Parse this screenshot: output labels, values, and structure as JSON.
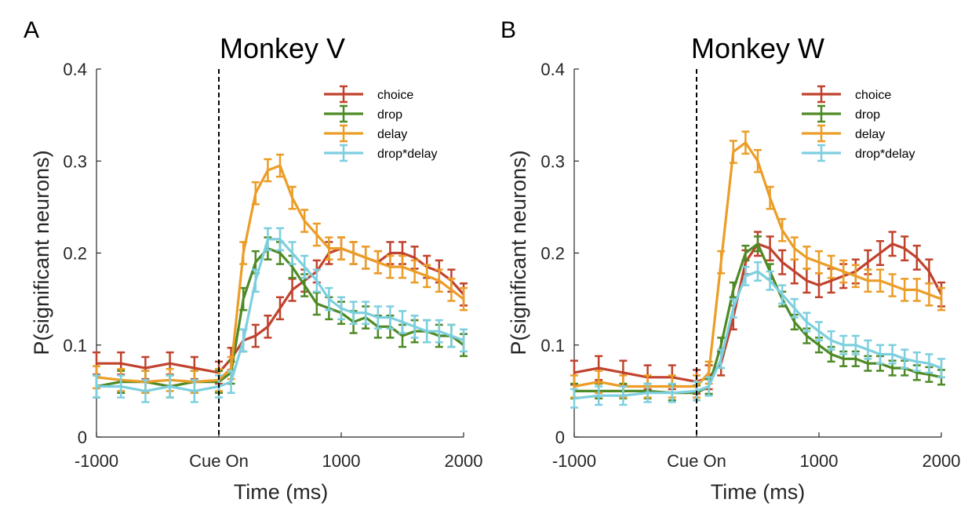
{
  "colors": {
    "choice": "#c0422d",
    "drop": "#4e8a25",
    "delay": "#eb9d27",
    "drop*delay": "#7dcfdf"
  },
  "chart_data": [
    {
      "type": "line",
      "panel_label": "A",
      "title": "Monkey V",
      "xlabel": "Time (ms)",
      "ylabel": "P(significant neurons)",
      "xlim": [
        -1000,
        2000
      ],
      "ylim": [
        0,
        0.4
      ],
      "xticks": [
        -1000,
        0,
        1000,
        2000
      ],
      "xtick_labels": [
        "-1000",
        "Cue On",
        "1000",
        "2000"
      ],
      "yticks": [
        0,
        0.1,
        0.2,
        0.3,
        0.4
      ],
      "ytick_labels": [
        "0",
        "0.1",
        "0.2",
        "0.3",
        "0.4"
      ],
      "cue_line_x": 0,
      "legend_position": "top-right",
      "series": [
        {
          "name": "choice",
          "x": [
            -1000,
            -800,
            -600,
            -400,
            -200,
            0,
            100,
            200,
            300,
            400,
            500,
            600,
            700,
            800,
            900,
            1000,
            1100,
            1200,
            1300,
            1400,
            1500,
            1600,
            1700,
            1800,
            1900,
            2000
          ],
          "y": [
            0.08,
            0.08,
            0.075,
            0.08,
            0.075,
            0.07,
            0.085,
            0.105,
            0.11,
            0.12,
            0.14,
            0.16,
            0.17,
            0.18,
            0.2,
            0.205,
            0.2,
            0.195,
            0.19,
            0.2,
            0.2,
            0.195,
            0.185,
            0.18,
            0.17,
            0.155
          ],
          "err": 0.012
        },
        {
          "name": "drop",
          "x": [
            -1000,
            -800,
            -600,
            -400,
            -200,
            0,
            100,
            200,
            300,
            400,
            500,
            600,
            700,
            800,
            900,
            1000,
            1100,
            1200,
            1300,
            1400,
            1500,
            1600,
            1700,
            1800,
            1900,
            2000
          ],
          "y": [
            0.055,
            0.06,
            0.06,
            0.055,
            0.06,
            0.06,
            0.07,
            0.15,
            0.19,
            0.205,
            0.2,
            0.185,
            0.165,
            0.145,
            0.14,
            0.135,
            0.125,
            0.13,
            0.12,
            0.12,
            0.11,
            0.115,
            0.115,
            0.11,
            0.11,
            0.1
          ],
          "err": 0.012
        },
        {
          "name": "delay",
          "x": [
            -1000,
            -800,
            -600,
            -400,
            -200,
            0,
            100,
            200,
            300,
            400,
            500,
            600,
            700,
            800,
            900,
            1000,
            1100,
            1200,
            1300,
            1400,
            1500,
            1600,
            1700,
            1800,
            1900,
            2000
          ],
          "y": [
            0.065,
            0.062,
            0.06,
            0.062,
            0.06,
            0.062,
            0.075,
            0.2,
            0.265,
            0.29,
            0.295,
            0.26,
            0.235,
            0.22,
            0.205,
            0.205,
            0.2,
            0.195,
            0.19,
            0.185,
            0.185,
            0.18,
            0.175,
            0.17,
            0.16,
            0.15
          ],
          "err": 0.012
        },
        {
          "name": "drop*delay",
          "x": [
            -1000,
            -800,
            -600,
            -400,
            -200,
            0,
            100,
            200,
            300,
            400,
            500,
            600,
            700,
            800,
            900,
            1000,
            1100,
            1200,
            1300,
            1400,
            1500,
            1600,
            1700,
            1800,
            1900,
            2000
          ],
          "y": [
            0.055,
            0.055,
            0.05,
            0.055,
            0.05,
            0.055,
            0.06,
            0.105,
            0.17,
            0.215,
            0.215,
            0.2,
            0.185,
            0.17,
            0.15,
            0.14,
            0.135,
            0.135,
            0.13,
            0.13,
            0.125,
            0.12,
            0.115,
            0.115,
            0.11,
            0.105
          ],
          "err": 0.012
        }
      ]
    },
    {
      "type": "line",
      "panel_label": "B",
      "title": "Monkey W",
      "xlabel": "Time (ms)",
      "ylabel": "P(significant neurons)",
      "xlim": [
        -1000,
        2000
      ],
      "ylim": [
        0,
        0.4
      ],
      "xticks": [
        -1000,
        0,
        1000,
        2000
      ],
      "xtick_labels": [
        "-1000",
        "Cue On",
        "1000",
        "2000"
      ],
      "yticks": [
        0,
        0.1,
        0.2,
        0.3,
        0.4
      ],
      "ytick_labels": [
        "0",
        "0.1",
        "0.2",
        "0.3",
        "0.4"
      ],
      "cue_line_x": 0,
      "legend_position": "top-right",
      "series": [
        {
          "name": "choice",
          "x": [
            -1000,
            -800,
            -600,
            -400,
            -200,
            0,
            100,
            200,
            300,
            400,
            500,
            600,
            700,
            800,
            900,
            1000,
            1100,
            1200,
            1300,
            1400,
            1500,
            1600,
            1700,
            1800,
            1900,
            2000
          ],
          "y": [
            0.07,
            0.075,
            0.07,
            0.065,
            0.065,
            0.06,
            0.065,
            0.08,
            0.13,
            0.19,
            0.21,
            0.205,
            0.19,
            0.18,
            0.17,
            0.165,
            0.17,
            0.175,
            0.18,
            0.19,
            0.2,
            0.21,
            0.205,
            0.195,
            0.18,
            0.155
          ],
          "err": 0.013
        },
        {
          "name": "drop",
          "x": [
            -1000,
            -800,
            -600,
            -400,
            -200,
            0,
            100,
            200,
            300,
            400,
            500,
            600,
            700,
            800,
            900,
            1000,
            1100,
            1200,
            1300,
            1400,
            1500,
            1600,
            1700,
            1800,
            1900,
            2000
          ],
          "y": [
            0.05,
            0.05,
            0.05,
            0.05,
            0.048,
            0.048,
            0.055,
            0.1,
            0.16,
            0.2,
            0.21,
            0.18,
            0.15,
            0.125,
            0.11,
            0.1,
            0.09,
            0.085,
            0.085,
            0.08,
            0.08,
            0.075,
            0.075,
            0.07,
            0.068,
            0.065
          ],
          "err": 0.008
        },
        {
          "name": "delay",
          "x": [
            -1000,
            -800,
            -600,
            -400,
            -200,
            0,
            100,
            200,
            300,
            400,
            500,
            600,
            700,
            800,
            900,
            1000,
            1100,
            1200,
            1300,
            1400,
            1500,
            1600,
            1700,
            1800,
            1900,
            2000
          ],
          "y": [
            0.055,
            0.06,
            0.055,
            0.055,
            0.055,
            0.055,
            0.07,
            0.19,
            0.31,
            0.32,
            0.3,
            0.26,
            0.225,
            0.205,
            0.195,
            0.19,
            0.185,
            0.18,
            0.175,
            0.17,
            0.17,
            0.165,
            0.16,
            0.16,
            0.155,
            0.15
          ],
          "err": 0.012
        },
        {
          "name": "drop*delay",
          "x": [
            -1000,
            -800,
            -600,
            -400,
            -200,
            0,
            100,
            200,
            300,
            400,
            500,
            600,
            700,
            800,
            900,
            1000,
            1100,
            1200,
            1300,
            1400,
            1500,
            1600,
            1700,
            1800,
            1900,
            2000
          ],
          "y": [
            0.042,
            0.045,
            0.045,
            0.048,
            0.048,
            0.05,
            0.055,
            0.085,
            0.14,
            0.175,
            0.18,
            0.17,
            0.155,
            0.14,
            0.125,
            0.115,
            0.105,
            0.1,
            0.1,
            0.095,
            0.09,
            0.09,
            0.085,
            0.082,
            0.08,
            0.075
          ],
          "err": 0.01
        }
      ]
    }
  ]
}
